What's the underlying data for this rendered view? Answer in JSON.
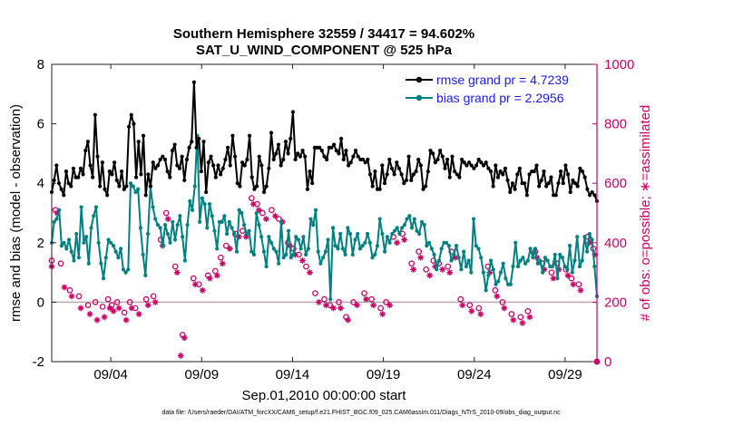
{
  "chart_data": {
    "type": "line",
    "title_lines": [
      "Southern Hemisphere 32559 / 34417 = 94.602%",
      "SAT_U_WIND_COMPONENT @ 525 hPa"
    ],
    "xlabel": "Sep.01,2010 00:00:00 start",
    "ylabel_left": "rmse and bias (model - observation)",
    "ylabel_right": "# of obs: o=possible; ∗=assimilated",
    "footnote": "data file: /Users/raeder/DAI/ATM_forcXX/CAM6_setup/f.e21.FHIST_BGC.f09_025.CAM6assim.011/Diags_NTrS_2010-09/obs_diag_output.nc",
    "x_range_days": [
      0,
      30
    ],
    "ylim_left": [
      -2,
      8
    ],
    "ylim_right": [
      0,
      1000
    ],
    "x_ticks": [
      {
        "day": 3.25,
        "label": "09/04"
      },
      {
        "day": 8.25,
        "label": "09/09"
      },
      {
        "day": 13.25,
        "label": "09/14"
      },
      {
        "day": 18.25,
        "label": "09/19"
      },
      {
        "day": 23.25,
        "label": "09/24"
      },
      {
        "day": 28.25,
        "label": "09/29"
      }
    ],
    "y_ticks_left": [
      "-2",
      "0",
      "2",
      "4",
      "6",
      "8"
    ],
    "y_ticks_right": [
      "0",
      "200",
      "400",
      "600",
      "800",
      "1000"
    ],
    "zero_line": 0,
    "legend_position": "top-right",
    "colors": {
      "rmse": "#000000",
      "bias": "#008080",
      "obs": "#cc0066",
      "zero": "#b8a9b1"
    },
    "series": [
      {
        "name": "rmse grand pr = 4.7239",
        "axis": "left",
        "values": [
          3.7,
          4.1,
          4.6,
          4.0,
          3.8,
          3.6,
          4.4,
          4.0,
          3.9,
          4.5,
          4.2,
          4.2,
          4.5,
          4.3,
          5.1,
          5.4,
          4.6,
          4.2,
          6.3,
          4.9,
          3.9,
          4.7,
          3.8,
          3.6,
          4.4,
          4.3,
          4.7,
          4.1,
          3.9,
          4.4,
          3.8,
          3.9,
          5.9,
          6.3,
          6.0,
          4.2,
          5.4,
          4.3,
          5.6,
          3.6,
          4.3,
          3.9,
          4.7,
          4.5,
          4.6,
          4.8,
          4.9,
          4.8,
          4.4,
          4.2,
          5.1,
          5.3,
          4.6,
          4.5,
          4.9,
          4.1,
          4.8,
          5.2,
          5.4,
          7.4,
          5.2,
          5.5,
          4.4,
          5.4,
          3.7,
          4.7,
          4.9,
          4.6,
          4.2,
          4.6,
          4.3,
          4.5,
          4.8,
          5.2,
          4.6,
          5.6,
          4.9,
          4.0,
          3.9,
          4.7,
          4.6,
          4.8,
          5.6,
          4.2,
          3.8,
          3.9,
          4.9,
          4.6,
          3.7,
          3.9,
          4.5,
          5.7,
          4.8,
          5.0,
          5.3,
          4.6,
          4.8,
          5.4,
          5.0,
          5.5,
          6.4,
          4.8,
          5.0,
          4.9,
          5.1,
          4.9,
          3.8,
          4.4,
          4.0,
          5.2,
          5.2,
          5.2,
          5.1,
          4.9,
          4.8,
          5.2,
          5.2,
          5.3,
          5.1,
          5.0,
          5.5,
          4.8,
          5.1,
          4.6,
          4.7,
          4.9,
          5.1,
          4.9,
          4.8,
          4.8,
          4.7,
          4.8,
          4.3,
          3.9,
          4.4,
          3.8,
          3.8,
          4.6,
          4.0,
          4.3,
          4.8,
          4.5,
          4.3,
          4.7,
          4.5,
          4.3,
          4.0,
          4.1,
          4.9,
          4.1,
          4.3,
          4.4,
          4.8,
          4.6,
          3.8,
          3.9,
          4.4,
          5.1,
          5.0,
          4.7,
          4.8,
          5.1,
          4.9,
          4.5,
          4.8,
          4.2,
          4.9,
          4.4,
          4.3,
          4.2,
          4.8,
          4.7,
          4.6,
          4.7,
          4.6,
          4.5,
          4.6,
          4.8,
          4.7,
          4.6,
          4.7,
          4.5,
          4.4,
          3.9,
          4.6,
          4.2,
          4.4,
          4.3,
          4.5,
          4.1,
          3.7,
          4.0,
          3.8,
          4.3,
          4.5,
          4.0,
          4.0,
          3.6,
          4.3,
          4.4,
          4.4,
          4.6,
          3.9,
          4.1,
          4.4,
          3.9,
          4.0,
          4.2,
          3.6,
          3.6,
          4.0,
          4.4,
          4.0,
          4.6,
          4.3,
          3.7,
          4.1,
          4.0,
          3.9,
          4.5,
          4.4,
          4.2,
          3.8,
          3.6,
          3.7,
          3.6,
          3.4
        ]
      },
      {
        "name": "bias grand pr = 2.2956",
        "axis": "left",
        "values": [
          2.0,
          2.7,
          2.8,
          3.1,
          1.9,
          2.0,
          1.8,
          2.1,
          1.7,
          1.4,
          2.3,
          1.5,
          3.2,
          2.0,
          2.2,
          1.3,
          2.5,
          2.9,
          3.2,
          2.0,
          1.3,
          0.8,
          1.5,
          2.1,
          2.0,
          1.9,
          1.7,
          1.5,
          1.8,
          1.1,
          1.0,
          1.1,
          4.0,
          3.9,
          3.7,
          3.8,
          2.5,
          1.6,
          0.9,
          2.3,
          3.9,
          3.2,
          2.8,
          2.6,
          2.5,
          1.9,
          2.6,
          2.3,
          2.0,
          2.7,
          2.1,
          2.6,
          2.9,
          2.2,
          1.4,
          2.6,
          3.4,
          3.1,
          3.9,
          5.6,
          2.7,
          3.5,
          3.3,
          2.5,
          3.3,
          2.9,
          2.4,
          1.8,
          2.7,
          2.7,
          2.9,
          2.3,
          2.7,
          2.5,
          2.3,
          1.7,
          3.1,
          3.0,
          2.6,
          2.3,
          2.4,
          1.7,
          1.6,
          3.0,
          2.6,
          2.2,
          1.7,
          1.2,
          2.2,
          2.0,
          1.8,
          1.7,
          1.3,
          2.7,
          1.5,
          1.6,
          2.4,
          1.5,
          1.6,
          2.2,
          2.1,
          1.8,
          2.2,
          1.6,
          1.8,
          2.8,
          2.6,
          3.1,
          1.7,
          1.3,
          1.5,
          1.7,
          2.1,
          0.1,
          2.5,
          1.9,
          1.8,
          2.3,
          1.8,
          1.6,
          2.5,
          2.3,
          1.6,
          2.1,
          2.3,
          1.8,
          1.9,
          2.0,
          2.3,
          2.0,
          1.5,
          1.6,
          1.9,
          2.8,
          2.3,
          1.7,
          2.2,
          2.0,
          2.3,
          2.4,
          2.5,
          2.3,
          2.5,
          2.6,
          2.8,
          2.9,
          2.5,
          2.8,
          2.4,
          2.3,
          2.7,
          2.6,
          1.9,
          2.0,
          1.8,
          1.6,
          1.1,
          1.4,
          1.8,
          2.0,
          2.0,
          1.9,
          1.4,
          1.6,
          1.9,
          1.5,
          1.1,
          1.7,
          1.2,
          1.4,
          1.0,
          2.8,
          1.9,
          1.8,
          1.5,
          1.0,
          0.4,
          0.9,
          1.4,
          1.1,
          0.6,
          0.7,
          1.0,
          1.3,
          0.8,
          0.6,
          0.6,
          1.2,
          2.0,
          1.2,
          1.4,
          1.5,
          1.3,
          1.4,
          1.8,
          1.5,
          1.8,
          1.3,
          1.4,
          1.0,
          1.5,
          1.4,
          1.2,
          1.2,
          1.6,
          0.8,
          1.6,
          1.5,
          1.2,
          1.1,
          1.9,
          1.0,
          1.4,
          2.2,
          1.2,
          1.4,
          2.2,
          1.7,
          2.3,
          2.1,
          1.2,
          0.2
        ]
      },
      {
        "name": "possible",
        "axis": "right",
        "marker": "circle",
        "points": [
          [
            0.0,
            340
          ],
          [
            0.2,
            510
          ],
          [
            0.5,
            330
          ],
          [
            1.0,
            240
          ],
          [
            1.5,
            220
          ],
          [
            2.0,
            190
          ],
          [
            2.4,
            200
          ],
          [
            2.8,
            185
          ],
          [
            3.1,
            210
          ],
          [
            3.3,
            190
          ],
          [
            3.6,
            200
          ],
          [
            4.0,
            165
          ],
          [
            4.3,
            200
          ],
          [
            4.6,
            180
          ],
          [
            5.2,
            210
          ],
          [
            5.6,
            220
          ],
          [
            6.0,
            410
          ],
          [
            6.3,
            500
          ],
          [
            6.8,
            320
          ],
          [
            7.2,
            90
          ],
          [
            7.8,
            280
          ],
          [
            8.1,
            260
          ],
          [
            8.6,
            290
          ],
          [
            9.0,
            305
          ],
          [
            9.3,
            350
          ],
          [
            9.6,
            390
          ],
          [
            10.1,
            430
          ],
          [
            10.5,
            440
          ],
          [
            11.0,
            550
          ],
          [
            11.3,
            530
          ],
          [
            11.6,
            500
          ],
          [
            12.1,
            510
          ],
          [
            12.5,
            480
          ],
          [
            13.0,
            400
          ],
          [
            13.3,
            380
          ],
          [
            13.6,
            360
          ],
          [
            14.0,
            320
          ],
          [
            14.5,
            230
          ],
          [
            15.0,
            210
          ],
          [
            15.3,
            190
          ],
          [
            15.8,
            200
          ],
          [
            16.2,
            150
          ],
          [
            16.6,
            200
          ],
          [
            17.2,
            230
          ],
          [
            17.6,
            210
          ],
          [
            18.1,
            180
          ],
          [
            18.4,
            200
          ],
          [
            18.8,
            420
          ],
          [
            19.3,
            430
          ],
          [
            19.8,
            330
          ],
          [
            20.2,
            370
          ],
          [
            20.6,
            310
          ],
          [
            21.0,
            340
          ],
          [
            21.3,
            330
          ],
          [
            21.8,
            320
          ],
          [
            22.0,
            370
          ],
          [
            22.5,
            210
          ],
          [
            23.0,
            190
          ],
          [
            23.5,
            180
          ],
          [
            24.0,
            320
          ],
          [
            24.4,
            240
          ],
          [
            24.8,
            200
          ],
          [
            25.3,
            160
          ],
          [
            25.8,
            150
          ],
          [
            26.2,
            170
          ],
          [
            26.6,
            370
          ],
          [
            27.0,
            330
          ],
          [
            27.5,
            300
          ],
          [
            27.8,
            330
          ],
          [
            28.3,
            310
          ],
          [
            28.6,
            280
          ],
          [
            29.0,
            260
          ],
          [
            29.5,
            420
          ],
          [
            29.8,
            380
          ],
          [
            30.0,
            0
          ]
        ]
      },
      {
        "name": "assimilated",
        "axis": "right",
        "marker": "star",
        "points": [
          [
            0.0,
            320
          ],
          [
            0.3,
            500
          ],
          [
            0.7,
            250
          ],
          [
            1.1,
            220
          ],
          [
            1.6,
            180
          ],
          [
            2.1,
            160
          ],
          [
            2.5,
            140
          ],
          [
            2.9,
            150
          ],
          [
            3.2,
            180
          ],
          [
            3.4,
            170
          ],
          [
            3.7,
            180
          ],
          [
            4.1,
            140
          ],
          [
            4.4,
            180
          ],
          [
            4.8,
            160
          ],
          [
            5.3,
            190
          ],
          [
            5.7,
            200
          ],
          [
            6.1,
            390
          ],
          [
            6.4,
            480
          ],
          [
            6.9,
            300
          ],
          [
            7.1,
            20
          ],
          [
            7.3,
            80
          ],
          [
            7.9,
            260
          ],
          [
            8.3,
            240
          ],
          [
            8.7,
            280
          ],
          [
            9.1,
            290
          ],
          [
            9.4,
            330
          ],
          [
            9.8,
            380
          ],
          [
            10.3,
            420
          ],
          [
            10.7,
            420
          ],
          [
            11.1,
            530
          ],
          [
            11.4,
            510
          ],
          [
            11.8,
            480
          ],
          [
            12.3,
            490
          ],
          [
            12.7,
            470
          ],
          [
            13.1,
            390
          ],
          [
            13.4,
            360
          ],
          [
            13.8,
            340
          ],
          [
            14.2,
            300
          ],
          [
            14.7,
            200
          ],
          [
            15.1,
            190
          ],
          [
            15.5,
            180
          ],
          [
            15.9,
            180
          ],
          [
            16.3,
            140
          ],
          [
            16.8,
            190
          ],
          [
            17.3,
            210
          ],
          [
            17.7,
            190
          ],
          [
            18.2,
            160
          ],
          [
            18.6,
            190
          ],
          [
            19.0,
            400
          ],
          [
            19.4,
            410
          ],
          [
            19.9,
            310
          ],
          [
            20.3,
            350
          ],
          [
            20.8,
            290
          ],
          [
            21.1,
            320
          ],
          [
            21.5,
            310
          ],
          [
            21.9,
            300
          ],
          [
            22.2,
            350
          ],
          [
            22.6,
            190
          ],
          [
            23.1,
            170
          ],
          [
            23.6,
            160
          ],
          [
            24.1,
            300
          ],
          [
            24.5,
            220
          ],
          [
            24.9,
            180
          ],
          [
            25.4,
            140
          ],
          [
            25.9,
            130
          ],
          [
            26.3,
            150
          ],
          [
            26.7,
            350
          ],
          [
            27.1,
            310
          ],
          [
            27.6,
            280
          ],
          [
            27.9,
            310
          ],
          [
            28.4,
            290
          ],
          [
            28.7,
            260
          ],
          [
            29.1,
            240
          ],
          [
            29.6,
            400
          ],
          [
            29.9,
            360
          ],
          [
            30.0,
            0
          ]
        ]
      }
    ]
  }
}
